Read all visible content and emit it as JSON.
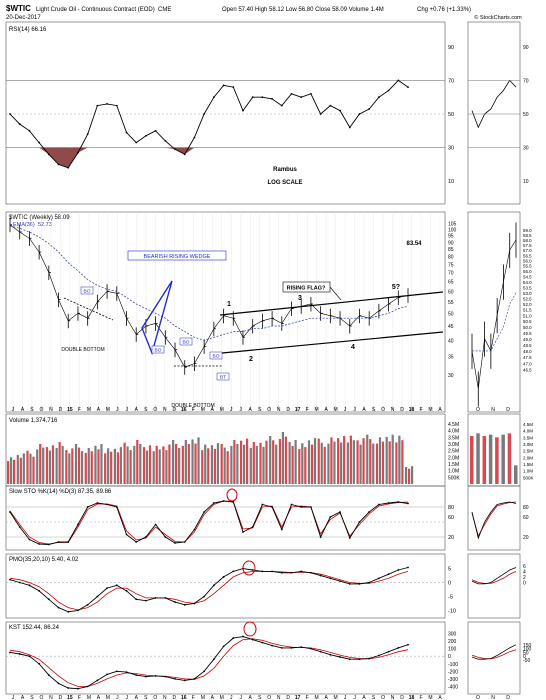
{
  "header": {
    "symbol": "$WTIC",
    "name": "Light Crude Oil - Continuous Contract (EOD)",
    "exchange": "CME",
    "date": "20-Dec-2017",
    "quote": "Open 57.40  High 58.12  Low 56.80  Close 58.09  Volume 1.4M",
    "change": "Chg +0.76 (+1.33%)",
    "brand": "© StockCharts.com"
  },
  "colors": {
    "red": "#cc0000",
    "blue": "#1f2ecc",
    "grid": "#a9a9a9",
    "volRed": "#d9474f",
    "volGray": "#7a7a7a",
    "rsiFill": "#8f4a4a"
  },
  "annotations": {
    "rambus": "Rambus",
    "log_scale": "LOG SCALE",
    "bearish": "BEARISH RISING WEDGE",
    "double_bottom_1": "DOUBLE BOTTOM",
    "double_bottom_2": "DOUBLE BOTTOM",
    "rising_flag": "RISING FLAG?",
    "pt1": "1",
    "pt2": "2",
    "pt3": "3",
    "pt4": "4",
    "pt5": "5?",
    "bo1": "BO",
    "bo2": "BO",
    "bo3": "BO",
    "bo4": "BO",
    "bt": "BT",
    "price_target": "83.54"
  },
  "chart_data": [
    {
      "type": "line",
      "title": "RSI(14) 66.16",
      "label_name": "RSI(14)",
      "label_value": "66.16",
      "ylim": [
        0,
        100
      ],
      "yticks": [
        10,
        30,
        50,
        70,
        90
      ],
      "reference_lines": [
        30,
        50,
        70
      ],
      "x": [
        "2014-07",
        "2014-08",
        "2014-09",
        "2014-10",
        "2014-11",
        "2014-12",
        "2015-01",
        "2015-02",
        "2015-03",
        "2015-04",
        "2015-05",
        "2015-06",
        "2015-07",
        "2015-08",
        "2015-09",
        "2015-10",
        "2015-11",
        "2015-12",
        "2016-01",
        "2016-02",
        "2016-03",
        "2016-04",
        "2016-05",
        "2016-06",
        "2016-07",
        "2016-08",
        "2016-09",
        "2016-10",
        "2016-11",
        "2016-12",
        "2017-01",
        "2017-02",
        "2017-03",
        "2017-04",
        "2017-05",
        "2017-06",
        "2017-07",
        "2017-08",
        "2017-09",
        "2017-10",
        "2017-11",
        "2017-12"
      ],
      "values": [
        50,
        44,
        40,
        33,
        26,
        20,
        18,
        27,
        38,
        55,
        56,
        55,
        39,
        33,
        37,
        40,
        34,
        29,
        26,
        36,
        50,
        60,
        67,
        66,
        52,
        60,
        60,
        59,
        55,
        62,
        60,
        62,
        50,
        55,
        52,
        42,
        50,
        53,
        60,
        64,
        70,
        66
      ]
    },
    {
      "type": "line",
      "title": "$WTIC (Weekly) 58.09",
      "label_name": "$WTIC (Weekly)",
      "label_value": "58.09",
      "series_labels": [
        {
          "name": "EMA(36)",
          "value": "52.73"
        }
      ],
      "scale": "log",
      "ylim": [
        24,
        110
      ],
      "yticks": [
        30,
        35,
        40,
        45,
        50,
        55,
        60,
        65,
        70,
        75,
        80,
        85,
        90,
        95,
        100,
        105
      ],
      "x": [
        "2014-07",
        "2014-08",
        "2014-09",
        "2014-10",
        "2014-11",
        "2014-12",
        "2015-01",
        "2015-02",
        "2015-03",
        "2015-04",
        "2015-05",
        "2015-06",
        "2015-07",
        "2015-08",
        "2015-09",
        "2015-10",
        "2015-11",
        "2015-12",
        "2016-01",
        "2016-02",
        "2016-03",
        "2016-04",
        "2016-05",
        "2016-06",
        "2016-07",
        "2016-08",
        "2016-09",
        "2016-10",
        "2016-11",
        "2016-12",
        "2017-01",
        "2017-02",
        "2017-03",
        "2017-04",
        "2017-05",
        "2017-06",
        "2017-07",
        "2017-08",
        "2017-09",
        "2017-10",
        "2017-11",
        "2017-12"
      ],
      "series": [
        {
          "name": "$WTIC",
          "values": [
            104,
            98,
            93,
            83,
            70,
            56,
            47,
            50,
            48,
            55,
            60,
            59,
            48,
            42,
            45,
            46,
            41,
            37,
            32,
            33,
            38,
            44,
            49,
            48,
            41,
            45,
            47,
            48,
            46,
            52,
            53,
            54,
            50,
            49,
            48,
            45,
            49,
            48,
            51,
            54,
            57,
            58
          ]
        },
        {
          "name": "EMA(36)",
          "values": [
            103,
            101,
            98,
            94,
            89,
            83,
            76,
            71,
            66,
            63,
            61,
            60,
            57,
            54,
            52,
            50,
            48,
            45,
            43,
            41,
            40,
            41,
            42,
            43,
            43,
            44,
            44,
            45,
            45,
            46,
            47,
            48,
            48,
            48,
            48,
            48,
            48,
            48,
            49,
            50,
            52,
            53
          ]
        }
      ],
      "x_tick_labels": [
        "J",
        "A",
        "S",
        "O",
        "N",
        "D",
        "15",
        "F",
        "M",
        "A",
        "M",
        "J",
        "J",
        "A",
        "S",
        "O",
        "N",
        "D",
        "16",
        "F",
        "M",
        "A",
        "M",
        "J",
        "J",
        "A",
        "S",
        "O",
        "N",
        "D",
        "17",
        "F",
        "M",
        "A",
        "M",
        "J",
        "J",
        "A",
        "S",
        "O",
        "N",
        "D",
        "18",
        "F",
        "M",
        "A"
      ]
    },
    {
      "type": "bar",
      "title": "Volume 1,374,716",
      "label_name": "Volume",
      "label_value": "1,374,716",
      "ylim": [
        0,
        4500000
      ],
      "yticks_labels": [
        "500K",
        "1.0M",
        "1.5M",
        "2.0M",
        "2.5M",
        "3.0M",
        "3.5M",
        "4.0M",
        "4.5M"
      ],
      "x": [
        "2014-07",
        "2014-08",
        "2014-09",
        "2014-10",
        "2014-11",
        "2014-12",
        "2015-01",
        "2015-02",
        "2015-03",
        "2015-04",
        "2015-05",
        "2015-06",
        "2015-07",
        "2015-08",
        "2015-09",
        "2015-10",
        "2015-11",
        "2015-12",
        "2016-01",
        "2016-02",
        "2016-03",
        "2016-04",
        "2016-05",
        "2016-06",
        "2016-07",
        "2016-08",
        "2016-09",
        "2016-10",
        "2016-11",
        "2016-12",
        "2017-01",
        "2017-02",
        "2017-03",
        "2017-04",
        "2017-05",
        "2017-06",
        "2017-07",
        "2017-08",
        "2017-09",
        "2017-10",
        "2017-11",
        "2017-12"
      ],
      "values": [
        2100000,
        2400000,
        2500000,
        3000000,
        2900000,
        3300000,
        2800000,
        3000000,
        2700000,
        3000000,
        2800000,
        2900000,
        3100000,
        3300000,
        2900000,
        3000000,
        3100000,
        3300000,
        3300000,
        3500000,
        3100000,
        3200000,
        3000000,
        3300000,
        3400000,
        3300000,
        3400000,
        3600000,
        3900000,
        3300000,
        3200000,
        3600000,
        3400000,
        3500000,
        3600000,
        3800000,
        3600000,
        3700000,
        3500000,
        3700000,
        3800000,
        1400000
      ]
    },
    {
      "type": "line",
      "title": "Slow STO %K(14) %D(3) 87.35, 89.86",
      "label_name": "Slow STO %K(14) %D(3)",
      "label_value_k": "87.35",
      "label_value_d": "89.86",
      "ylim": [
        0,
        100
      ],
      "yticks": [
        20,
        60,
        80
      ],
      "reference_lines": [
        20,
        50,
        80
      ],
      "x": [
        "2014-07",
        "2014-08",
        "2014-09",
        "2014-10",
        "2014-11",
        "2014-12",
        "2015-01",
        "2015-02",
        "2015-03",
        "2015-04",
        "2015-05",
        "2015-06",
        "2015-07",
        "2015-08",
        "2015-09",
        "2015-10",
        "2015-11",
        "2015-12",
        "2016-01",
        "2016-02",
        "2016-03",
        "2016-04",
        "2016-05",
        "2016-06",
        "2016-07",
        "2016-08",
        "2016-09",
        "2016-10",
        "2016-11",
        "2016-12",
        "2017-01",
        "2017-02",
        "2017-03",
        "2017-04",
        "2017-05",
        "2017-06",
        "2017-07",
        "2017-08",
        "2017-09",
        "2017-10",
        "2017-11",
        "2017-12"
      ],
      "series": [
        {
          "name": "%K",
          "values": [
            70,
            40,
            15,
            6,
            5,
            10,
            10,
            45,
            80,
            88,
            85,
            80,
            25,
            10,
            20,
            45,
            20,
            8,
            10,
            35,
            70,
            88,
            92,
            90,
            30,
            40,
            85,
            80,
            35,
            85,
            80,
            80,
            20,
            60,
            70,
            18,
            50,
            70,
            85,
            88,
            90,
            87
          ]
        },
        {
          "name": "%D",
          "values": [
            72,
            45,
            20,
            9,
            6,
            9,
            9,
            40,
            75,
            86,
            86,
            82,
            32,
            14,
            18,
            40,
            25,
            11,
            10,
            30,
            65,
            85,
            92,
            91,
            36,
            38,
            80,
            82,
            40,
            80,
            82,
            80,
            26,
            55,
            68,
            22,
            45,
            66,
            82,
            86,
            89,
            90
          ]
        }
      ]
    },
    {
      "type": "line",
      "title": "PMO(35,20,10) 5.40, 4.02",
      "label_name": "PMO(35,20,10)",
      "label_value": "5.40",
      "label_signal": "4.02",
      "ylim": [
        -12,
        7
      ],
      "yticks": [
        5,
        0,
        -5,
        -10
      ],
      "reference_lines": [
        0
      ],
      "x": [
        "2014-07",
        "2014-08",
        "2014-09",
        "2014-10",
        "2014-11",
        "2014-12",
        "2015-01",
        "2015-02",
        "2015-03",
        "2015-04",
        "2015-05",
        "2015-06",
        "2015-07",
        "2015-08",
        "2015-09",
        "2015-10",
        "2015-11",
        "2015-12",
        "2016-01",
        "2016-02",
        "2016-03",
        "2016-04",
        "2016-05",
        "2016-06",
        "2016-07",
        "2016-08",
        "2016-09",
        "2016-10",
        "2016-11",
        "2016-12",
        "2017-01",
        "2017-02",
        "2017-03",
        "2017-04",
        "2017-05",
        "2017-06",
        "2017-07",
        "2017-08",
        "2017-09",
        "2017-10",
        "2017-11",
        "2017-12"
      ],
      "series": [
        {
          "name": "PMO",
          "values": [
            1,
            0,
            -1,
            -3,
            -6,
            -9,
            -10.5,
            -10,
            -8,
            -5,
            -2,
            -1,
            -3,
            -6,
            -6.5,
            -5.5,
            -5.5,
            -7,
            -8,
            -7.5,
            -5,
            -1,
            2,
            4,
            5,
            4.5,
            4,
            4,
            3.5,
            3.5,
            4,
            3.5,
            2.5,
            1.5,
            0.5,
            -0.5,
            -0.5,
            0,
            1.5,
            3,
            4.5,
            5.4
          ]
        },
        {
          "name": "Signal",
          "values": [
            1.5,
            1,
            0,
            -1.5,
            -4,
            -7,
            -9,
            -9.8,
            -9,
            -7,
            -4,
            -2,
            -2,
            -4,
            -5.5,
            -5.5,
            -5.5,
            -6,
            -7,
            -7.5,
            -6.5,
            -4,
            -1,
            2,
            3.5,
            4,
            4,
            4,
            3.8,
            3.6,
            3.7,
            3.6,
            3,
            2,
            1,
            0,
            -0.3,
            -0.3,
            0.5,
            1.5,
            3,
            4
          ]
        }
      ]
    },
    {
      "type": "line",
      "title": "KST 152.44, 86.24",
      "label_name": "KST",
      "label_value": "152.44",
      "label_signal": "86.24",
      "ylim": [
        -460,
        360
      ],
      "yticks": [
        300,
        200,
        100,
        0,
        -100,
        -200,
        -300,
        -400
      ],
      "reference_lines": [
        0
      ],
      "x": [
        "2014-07",
        "2014-08",
        "2014-09",
        "2014-10",
        "2014-11",
        "2014-12",
        "2015-01",
        "2015-02",
        "2015-03",
        "2015-04",
        "2015-05",
        "2015-06",
        "2015-07",
        "2015-08",
        "2015-09",
        "2015-10",
        "2015-11",
        "2015-12",
        "2016-01",
        "2016-02",
        "2016-03",
        "2016-04",
        "2016-05",
        "2016-06",
        "2016-07",
        "2016-08",
        "2016-09",
        "2016-10",
        "2016-11",
        "2016-12",
        "2017-01",
        "2017-02",
        "2017-03",
        "2017-04",
        "2017-05",
        "2017-06",
        "2017-07",
        "2017-08",
        "2017-09",
        "2017-10",
        "2017-11",
        "2017-12"
      ],
      "series": [
        {
          "name": "KST",
          "values": [
            50,
            30,
            0,
            -100,
            -250,
            -360,
            -420,
            -430,
            -400,
            -320,
            -240,
            -200,
            -210,
            -250,
            -270,
            -260,
            -270,
            -300,
            -320,
            -300,
            -200,
            -40,
            130,
            240,
            260,
            220,
            180,
            140,
            110,
            110,
            120,
            100,
            60,
            20,
            -10,
            -40,
            -40,
            -30,
            10,
            60,
            110,
            152
          ]
        },
        {
          "name": "Signal",
          "values": [
            80,
            60,
            20,
            -40,
            -150,
            -260,
            -350,
            -400,
            -400,
            -360,
            -300,
            -250,
            -220,
            -230,
            -250,
            -260,
            -265,
            -280,
            -300,
            -305,
            -260,
            -160,
            0,
            140,
            220,
            230,
            210,
            170,
            140,
            120,
            115,
            110,
            85,
            50,
            15,
            -15,
            -30,
            -35,
            -15,
            20,
            60,
            86
          ]
        }
      ]
    }
  ]
}
